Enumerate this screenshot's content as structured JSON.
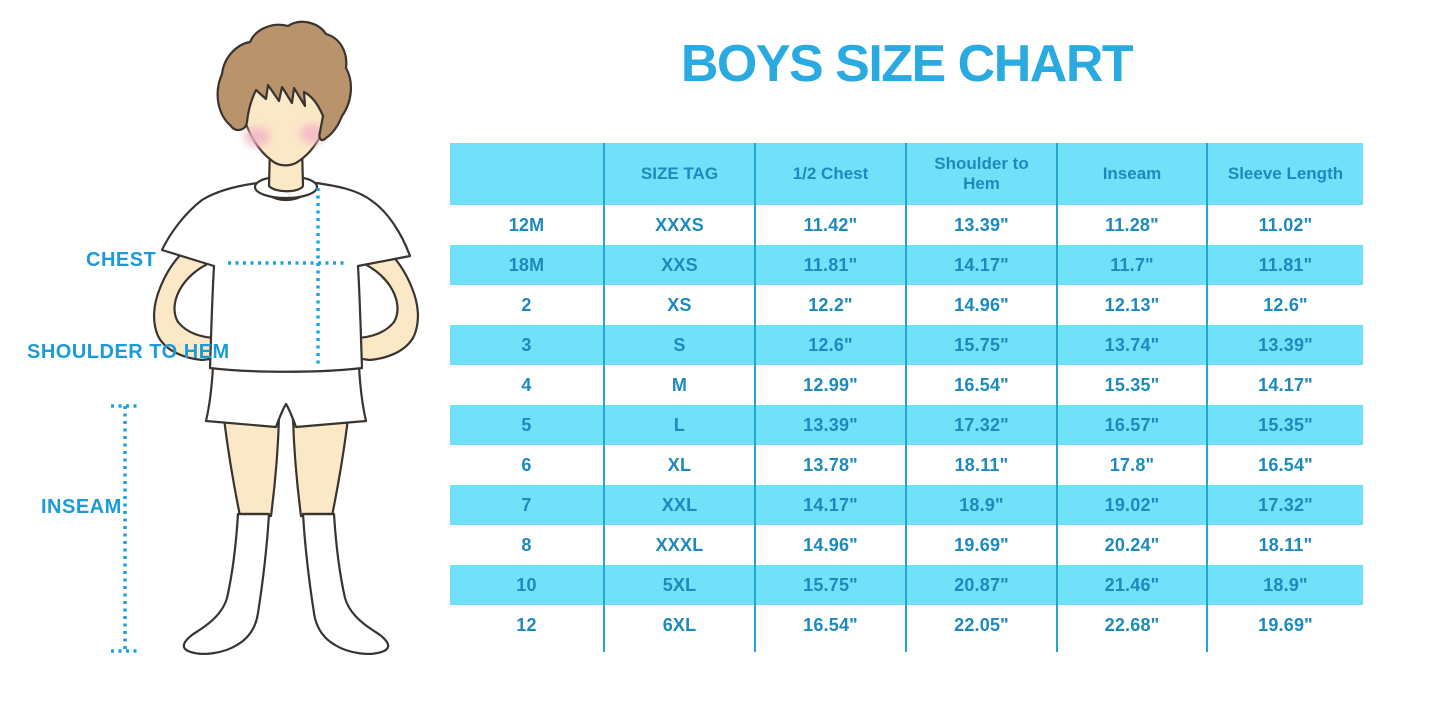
{
  "title": "BOYS SIZE CHART",
  "figure": {
    "labels": {
      "chest": "CHEST",
      "shoulder_to_hem": "SHOULDER TO HEM",
      "inseam": "INSEAM"
    }
  },
  "chart_data": {
    "type": "table",
    "title": "BOYS SIZE CHART",
    "columns": [
      "",
      "SIZE TAG",
      "1/2 Chest",
      "Shoulder to Hem",
      "Inseam",
      "Sleeve Length"
    ],
    "rows": [
      [
        "12M",
        "XXXS",
        "11.42\"",
        "13.39\"",
        "11.28\"",
        "11.02\""
      ],
      [
        "18M",
        "XXS",
        "11.81\"",
        "14.17\"",
        "11.7\"",
        "11.81\""
      ],
      [
        "2",
        "XS",
        "12.2\"",
        "14.96\"",
        "12.13\"",
        "12.6\""
      ],
      [
        "3",
        "S",
        "12.6\"",
        "15.75\"",
        "13.74\"",
        "13.39\""
      ],
      [
        "4",
        "M",
        "12.99\"",
        "16.54\"",
        "15.35\"",
        "14.17\""
      ],
      [
        "5",
        "L",
        "13.39\"",
        "17.32\"",
        "16.57\"",
        "15.35\""
      ],
      [
        "6",
        "XL",
        "13.78\"",
        "18.11\"",
        "17.8\"",
        "16.54\""
      ],
      [
        "7",
        "XXL",
        "14.17\"",
        "18.9\"",
        "19.02\"",
        "17.32\""
      ],
      [
        "8",
        "XXXL",
        "14.96\"",
        "19.69\"",
        "20.24\"",
        "18.11\""
      ],
      [
        "10",
        "5XL",
        "15.75\"",
        "20.87\"",
        "21.46\"",
        "18.9\""
      ],
      [
        "12",
        "6XL",
        "16.54\"",
        "22.05\"",
        "22.68\"",
        "19.69\""
      ]
    ],
    "layout": {
      "row_striping": [
        "white",
        "cyan"
      ],
      "grid": "vertical-lines-only",
      "header_fill": "cyan"
    }
  },
  "colors": {
    "title": "#29ABE2",
    "label": "#1B9CD8",
    "dotted": "#1BA3DC",
    "table_fill": "#71E1FA",
    "table_text": "#1D89BC",
    "table_line": "#26A3D0",
    "hair": "#B8936B",
    "skin": "#FBE8C7",
    "blush": "#F3B3C6",
    "outline": "#3A3430"
  }
}
